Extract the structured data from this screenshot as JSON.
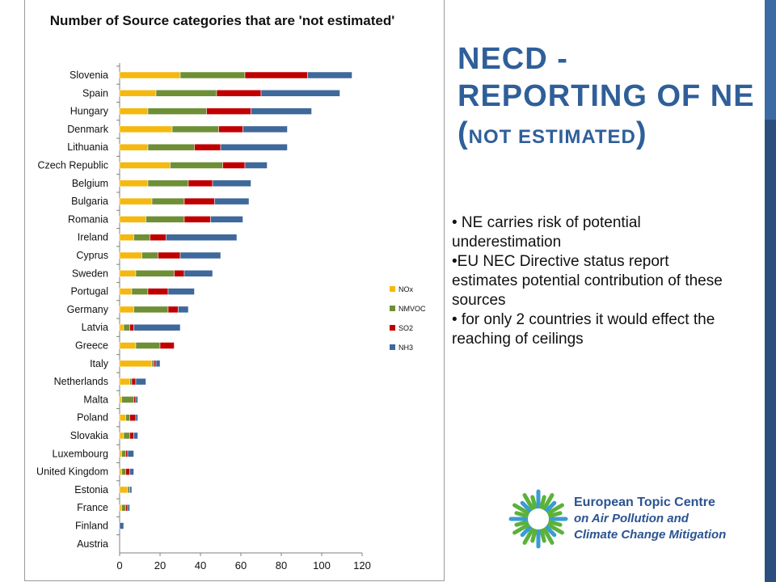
{
  "slide": {
    "title_main": "NECD - REPORTING OF NE (",
    "title_small": "NOT ESTIMATED",
    "title_close": ")",
    "bullets": [
      "• NE carries risk of potential underestimation",
      "•EU NEC Directive status report estimates  potential contribution of these sources",
      "• for only 2 countries it would effect  the reaching of ceilings"
    ],
    "logo": {
      "line1": "European Topic Centre",
      "line2": "on Air Pollution and",
      "line3": "Climate Change Mitigation"
    }
  },
  "chart_data": {
    "type": "bar",
    "orientation": "horizontal",
    "stacked": true,
    "title": "Number of Source categories that are 'not estimated'",
    "categories": [
      "Slovenia",
      "Spain",
      "Hungary",
      "Denmark",
      "Lithuania",
      "Czech Republic",
      "Belgium",
      "Bulgaria",
      "Romania",
      "Ireland",
      "Cyprus",
      "Sweden",
      "Portugal",
      "Germany",
      "Latvia",
      "Greece",
      "Italy",
      "Netherlands",
      "Malta",
      "Poland",
      "Slovakia",
      "Luxembourg",
      "United Kingdom",
      "Estonia",
      "France",
      "Finland",
      "Austria"
    ],
    "series": [
      {
        "name": "NOx",
        "color": "#f5b80f",
        "values": [
          30,
          18,
          14,
          26,
          14,
          25,
          14,
          16,
          13,
          7,
          11,
          8,
          6,
          7,
          2,
          8,
          16,
          5,
          1,
          3,
          2,
          1,
          1,
          4,
          1,
          0,
          0
        ]
      },
      {
        "name": "NMVOC",
        "color": "#6e8f36",
        "values": [
          32,
          30,
          29,
          23,
          23,
          26,
          20,
          16,
          19,
          8,
          8,
          19,
          8,
          17,
          3,
          12,
          1,
          1,
          6,
          2,
          3,
          2,
          2,
          1,
          2,
          0,
          0
        ]
      },
      {
        "name": "SO2",
        "color": "#c00000",
        "values": [
          31,
          22,
          22,
          12,
          13,
          11,
          12,
          15,
          13,
          8,
          11,
          5,
          10,
          5,
          2,
          7,
          1,
          2,
          1,
          3,
          2,
          1,
          2,
          0,
          1,
          0,
          0
        ]
      },
      {
        "name": "NH3",
        "color": "#3f689b",
        "values": [
          22,
          39,
          30,
          22,
          33,
          11,
          19,
          17,
          16,
          35,
          20,
          14,
          13,
          5,
          23,
          0,
          2,
          5,
          1,
          1,
          2,
          3,
          2,
          1,
          1,
          2,
          0
        ]
      }
    ],
    "xlim": [
      0,
      120
    ],
    "xticks": [
      "0",
      "20",
      "40",
      "60",
      "80",
      "100",
      "120"
    ],
    "grid": false,
    "legend_position": "right"
  }
}
